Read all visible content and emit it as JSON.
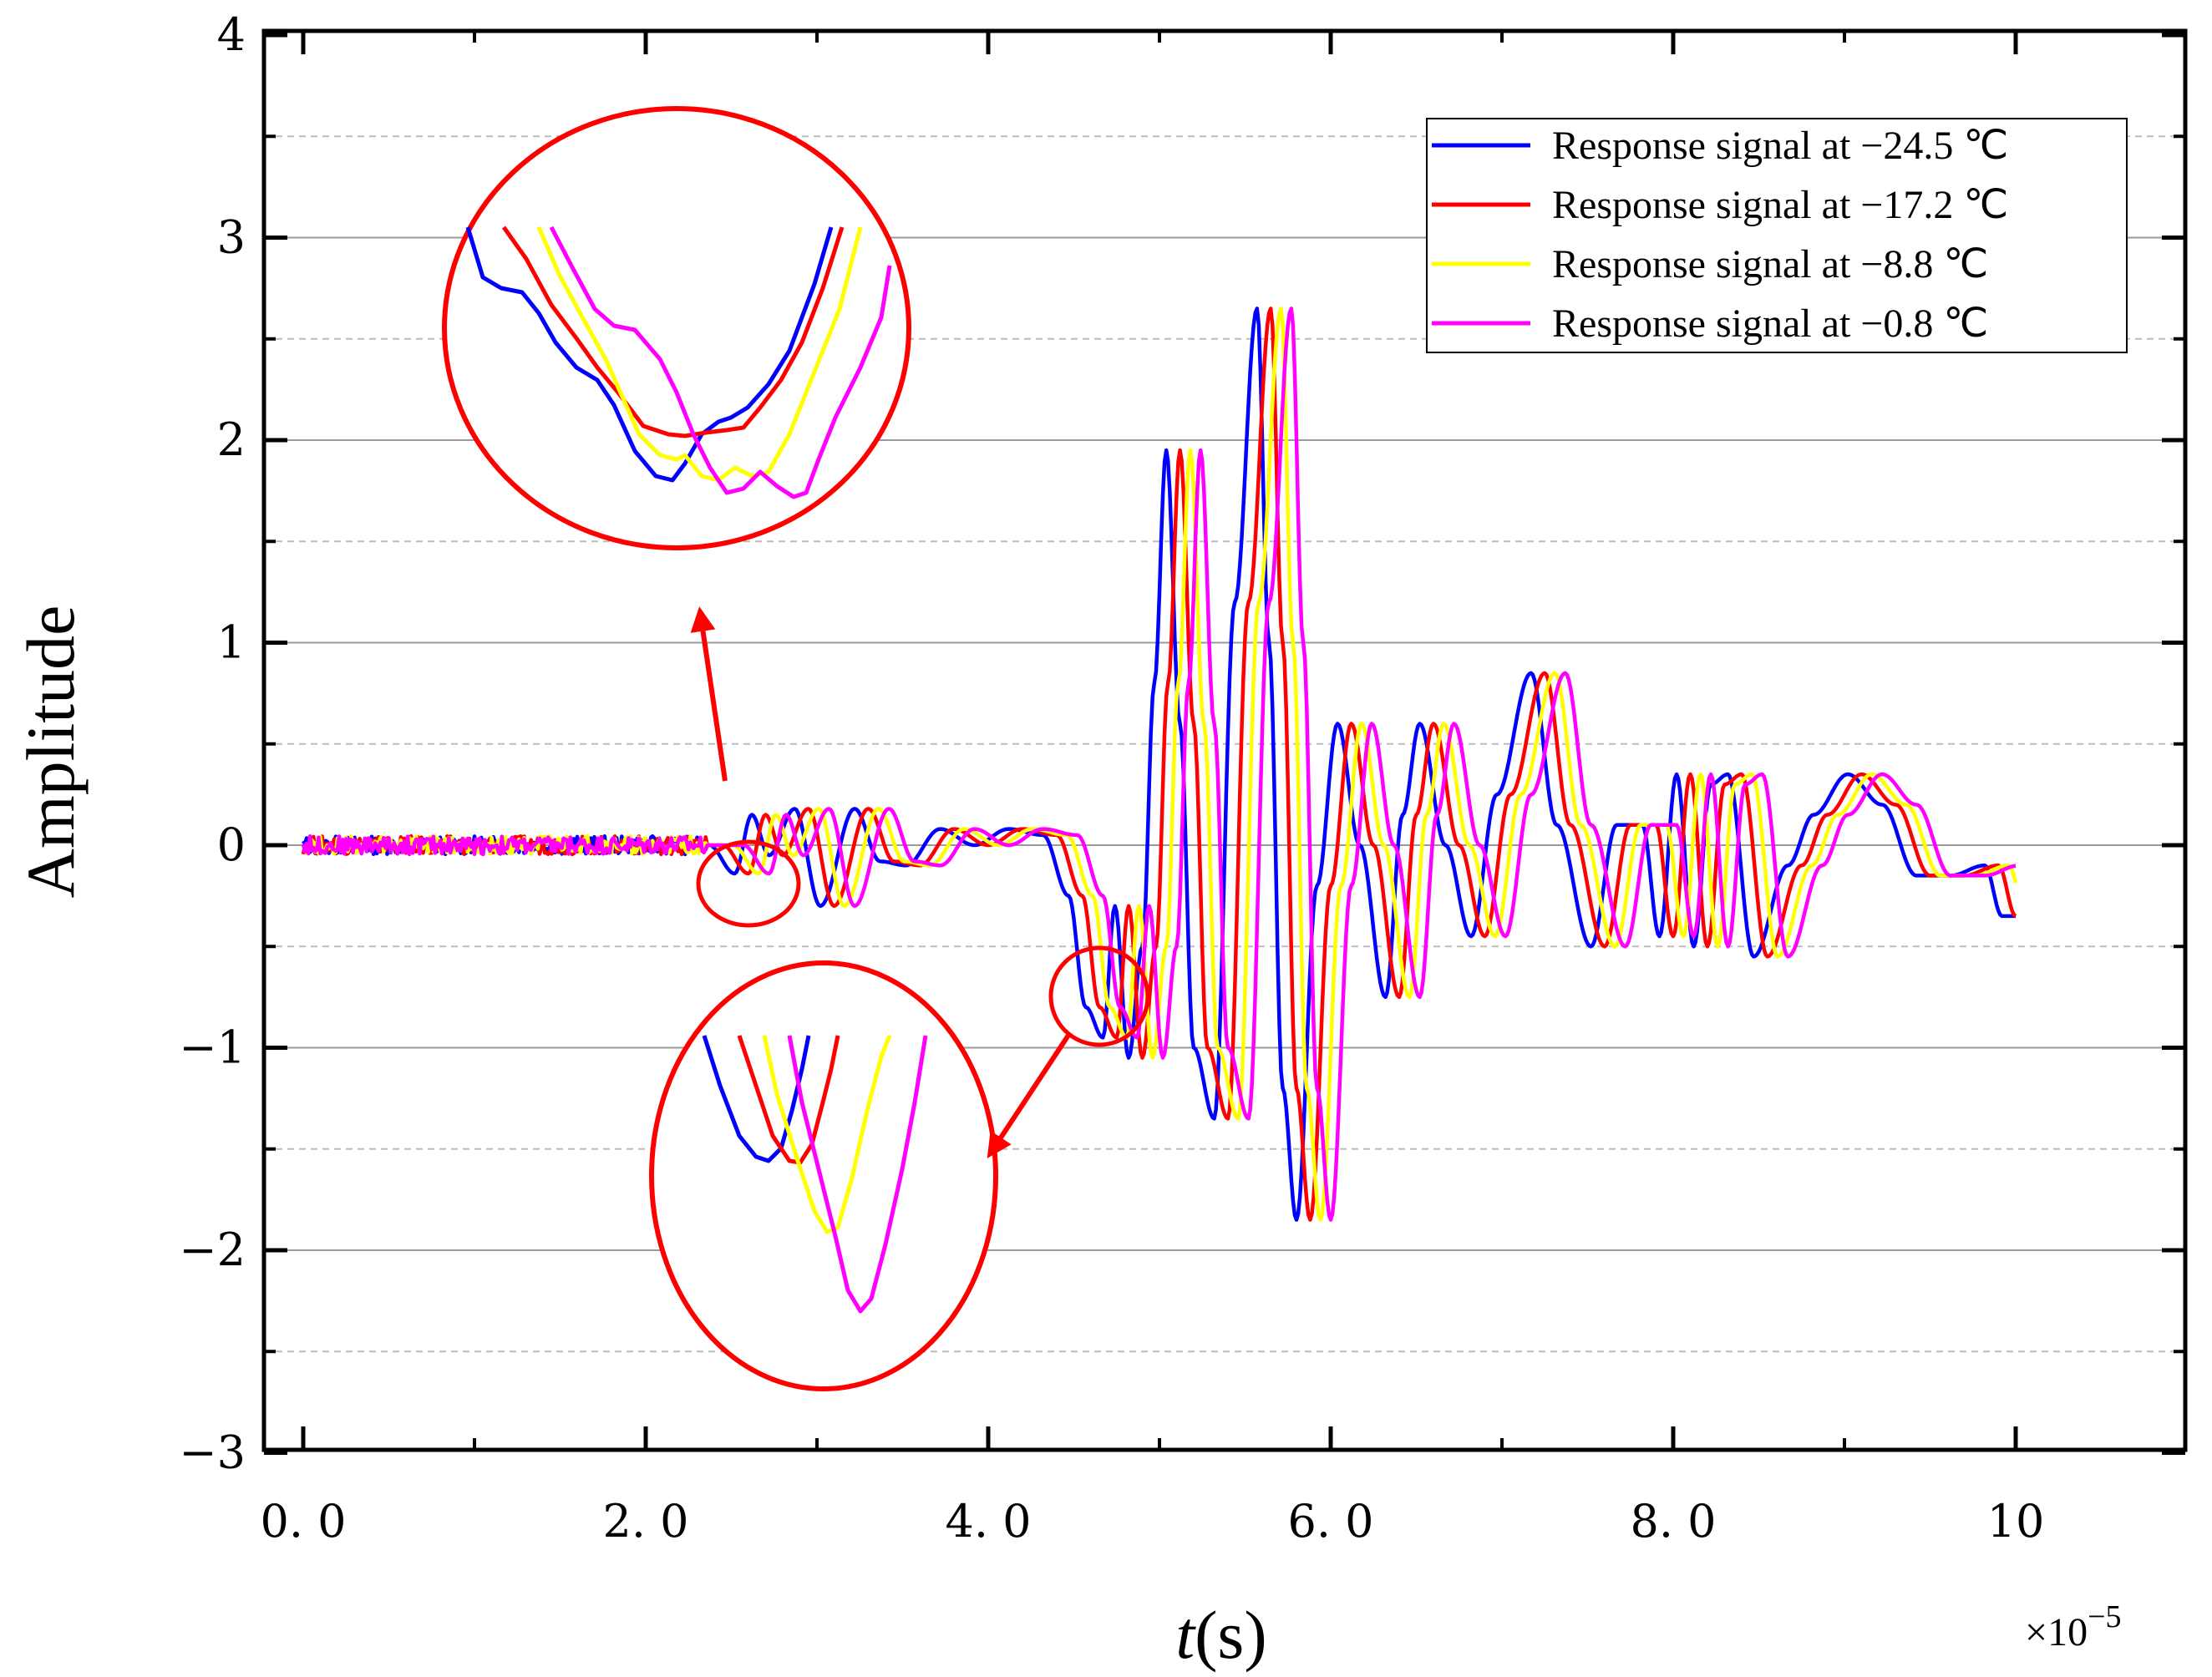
{
  "chart_data": {
    "type": "line",
    "title": "",
    "xlabel": "t(s)",
    "xlabel_italic": "t",
    "xlabel_unit": "(s)",
    "ylabel": "Amplitude",
    "x_scale_label": "×10",
    "x_scale_exp": "−5",
    "xlim": [
      -0.25,
      11.0
    ],
    "ylim": [
      -3,
      4
    ],
    "x_ticks": [
      0,
      2,
      4,
      6,
      8,
      10
    ],
    "x_tick_labels": [
      "0. 0",
      "2. 0",
      "4. 0",
      "6. 0",
      "8. 0",
      "10"
    ],
    "y_ticks": [
      -3,
      -2,
      -1,
      0,
      1,
      2,
      3,
      4
    ],
    "y_tick_labels": [
      "−3",
      "−2",
      "−1",
      "0",
      "1",
      "2",
      "3",
      "4"
    ],
    "grid": true,
    "legend_position": "top-right",
    "series": [
      {
        "name": "Response signal at  −24.5  ℃",
        "color": "#0000ff",
        "shift": -0.08
      },
      {
        "name": "Response signal at  −17.2  ℃",
        "color": "#ff0000",
        "shift": 0.0
      },
      {
        "name": "Response signal at  −8.8  ℃",
        "color": "#ffff00",
        "shift": 0.06
      },
      {
        "name": "Response signal at  −0.8  ℃",
        "color": "#ff00ff",
        "shift": 0.12
      }
    ],
    "base_signal": {
      "x": [
        0,
        2.3,
        2.45,
        2.6,
        2.7,
        2.8,
        2.95,
        3.1,
        3.3,
        3.45,
        3.6,
        3.8,
        4.0,
        4.2,
        4.4,
        4.55,
        4.65,
        4.75,
        4.82,
        4.9,
        4.98,
        5.05,
        5.12,
        5.2,
        5.28,
        5.4,
        5.52,
        5.65,
        5.72,
        5.8,
        5.88,
        6.0,
        6.12,
        6.25,
        6.4,
        6.5,
        6.6,
        6.75,
        6.9,
        7.05,
        7.25,
        7.4,
        7.6,
        7.75,
        7.9,
        8.0,
        8.1,
        8.2,
        8.3,
        8.4,
        8.55,
        8.75,
        8.9,
        9.1,
        9.3,
        9.5,
        9.7,
        9.9,
        10.0
      ],
      "y": [
        0,
        0,
        0.0,
        -0.14,
        0.15,
        -0.05,
        0.18,
        -0.3,
        0.18,
        -0.08,
        -0.1,
        0.08,
        0.0,
        0.08,
        0.05,
        -0.25,
        -0.8,
        -0.95,
        -0.3,
        -1.05,
        -0.5,
        0.8,
        1.95,
        0.6,
        -1.0,
        -1.35,
        1.2,
        2.65,
        1.0,
        -1.2,
        -1.85,
        -0.2,
        0.6,
        0.0,
        -0.75,
        0.15,
        0.6,
        0.0,
        -0.45,
        0.25,
        0.85,
        0.1,
        -0.5,
        0.1,
        0.1,
        -0.45,
        0.35,
        -0.5,
        0.3,
        0.35,
        -0.55,
        -0.1,
        0.15,
        0.35,
        0.2,
        -0.15,
        -0.15,
        -0.1,
        -0.35
      ]
    },
    "annotations": {
      "zoom_top": {
        "target_x": 2.62,
        "target_y": -0.08
      },
      "zoom_bottom": {
        "target_x": 4.82,
        "target_y": -0.75
      }
    }
  }
}
